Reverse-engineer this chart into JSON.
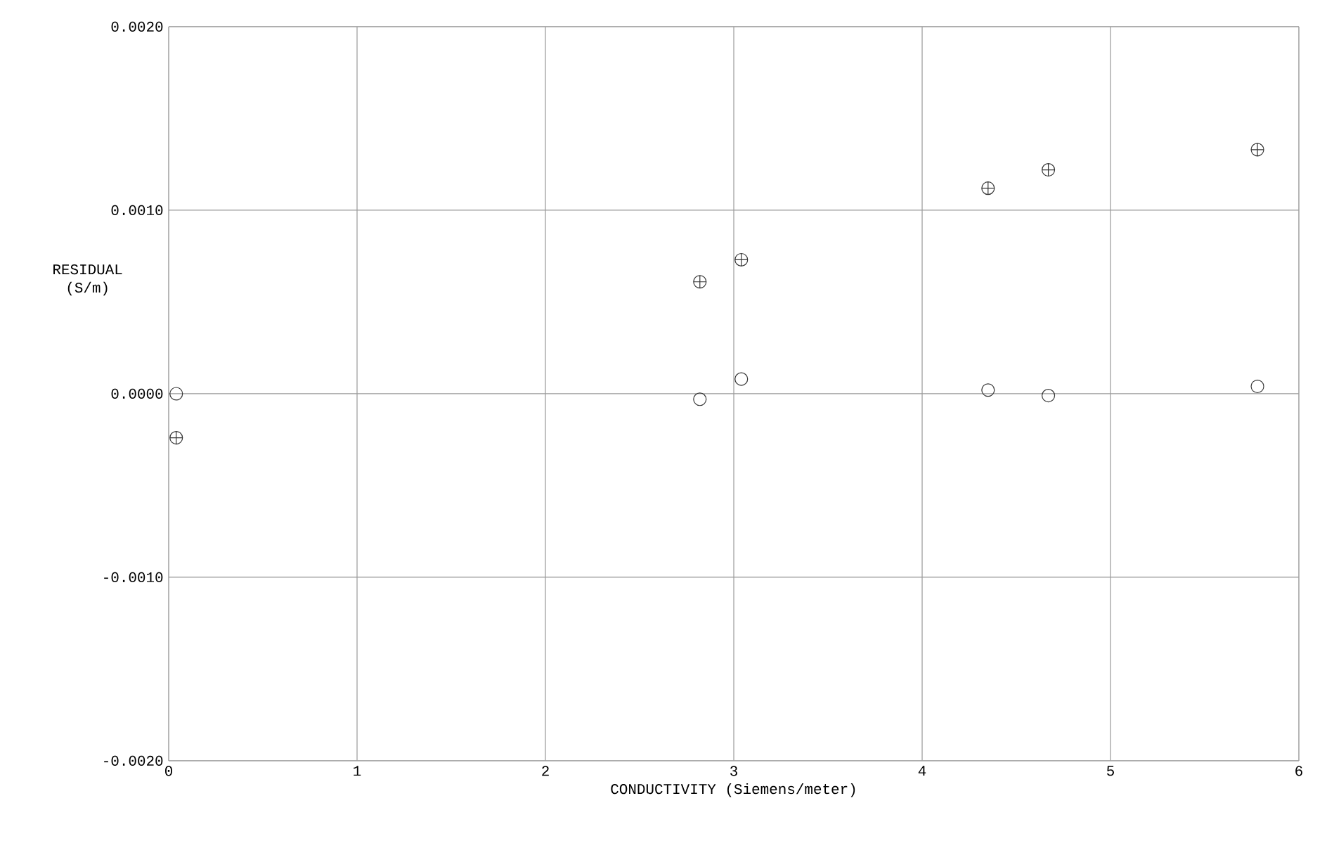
{
  "chart_data": {
    "type": "scatter",
    "xlabel": "CONDUCTIVITY (Siemens/meter)",
    "ylabel": "RESIDUAL (S/m)",
    "xlim": [
      0,
      6
    ],
    "ylim": [
      -0.002,
      0.002
    ],
    "xticks": [
      0,
      1,
      2,
      3,
      4,
      5,
      6
    ],
    "yticks": [
      {
        "value": -0.002,
        "label": "-0.0020"
      },
      {
        "value": -0.001,
        "label": "-0.0010"
      },
      {
        "value": 0,
        "label": "0.0000"
      },
      {
        "value": 0.001,
        "label": "0.0010"
      },
      {
        "value": 0.002,
        "label": "0.0020"
      }
    ],
    "grid": true,
    "series": [
      {
        "color": "#333333",
        "marker": "cross",
        "x": [
          0.04,
          2.82,
          3.04,
          4.35,
          4.67,
          5.78
        ],
        "values": [
          -0.00024,
          0.00061,
          0.00073,
          0.00112,
          0.00122,
          0.00133
        ]
      },
      {
        "color": "#333333",
        "marker": "circle",
        "x": [
          0.04,
          2.82,
          3.04,
          4.35,
          4.67,
          5.78
        ],
        "values": [
          0.0,
          -3e-05,
          8e-05,
          2e-05,
          -1e-05,
          4e-05
        ]
      }
    ]
  }
}
